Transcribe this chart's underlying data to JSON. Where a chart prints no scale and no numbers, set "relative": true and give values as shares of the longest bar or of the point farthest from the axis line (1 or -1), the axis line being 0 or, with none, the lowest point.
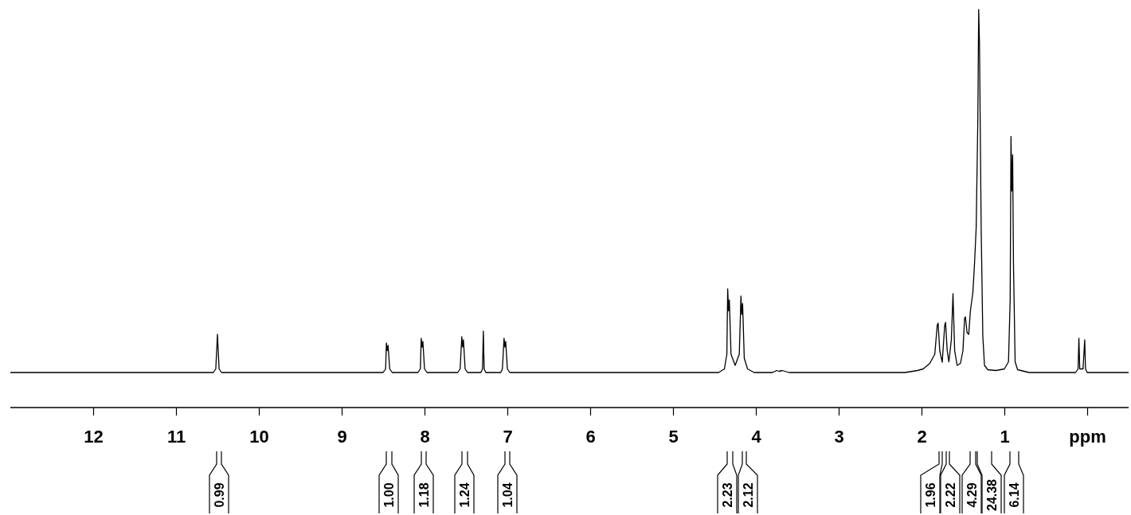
{
  "chart_data": {
    "type": "line",
    "relative": true,
    "xlim": [
      13.0,
      -0.5
    ],
    "xticks": [
      12,
      11,
      10,
      9,
      8,
      7,
      6,
      5,
      4,
      3,
      2,
      1,
      {
        "value": 0,
        "label": "ppm"
      }
    ],
    "series": [
      {
        "color": "#000000",
        "x": [
          13.0,
          10.55,
          10.52,
          10.5,
          10.48,
          10.45,
          8.5,
          8.47,
          8.46,
          8.45,
          8.44,
          8.42,
          8.39,
          8.08,
          8.05,
          8.04,
          8.03,
          8.02,
          8.0,
          7.97,
          7.6,
          7.57,
          7.55,
          7.54,
          7.53,
          7.51,
          7.48,
          7.32,
          7.3,
          7.29,
          7.28,
          7.26,
          7.08,
          7.06,
          7.04,
          7.03,
          7.02,
          7.0,
          6.97,
          4.45,
          4.38,
          4.35,
          4.34,
          4.33,
          4.32,
          4.3,
          4.25,
          4.2,
          4.18,
          4.17,
          4.16,
          4.14,
          4.1,
          4.02,
          3.8,
          3.75,
          3.72,
          3.68,
          3.6,
          2.2,
          2.05,
          1.98,
          1.9,
          1.84,
          1.81,
          1.8,
          1.78,
          1.75,
          1.72,
          1.71,
          1.69,
          1.67,
          1.64,
          1.62,
          1.6,
          1.57,
          1.53,
          1.5,
          1.48,
          1.47,
          1.45,
          1.43,
          1.41,
          1.38,
          1.36,
          1.34,
          1.32,
          1.31,
          1.3,
          1.28,
          1.26,
          1.24,
          1.2,
          1.1,
          1.0,
          0.95,
          0.93,
          0.92,
          0.91,
          0.9,
          0.89,
          0.87,
          0.84,
          0.7,
          0.14,
          0.11,
          0.1,
          0.09,
          0.05,
          0.03,
          0.02,
          0.0,
          -0.5
        ],
        "values": [
          0.088,
          0.088,
          0.097,
          0.184,
          0.097,
          0.088,
          0.088,
          0.097,
          0.162,
          0.143,
          0.156,
          0.097,
          0.088,
          0.088,
          0.097,
          0.174,
          0.152,
          0.166,
          0.097,
          0.088,
          0.088,
          0.097,
          0.178,
          0.152,
          0.17,
          0.097,
          0.088,
          0.088,
          0.097,
          0.192,
          0.097,
          0.088,
          0.088,
          0.097,
          0.174,
          0.152,
          0.166,
          0.097,
          0.088,
          0.088,
          0.097,
          0.134,
          0.298,
          0.243,
          0.27,
          0.134,
          0.106,
          0.134,
          0.28,
          0.234,
          0.261,
          0.124,
          0.097,
          0.088,
          0.088,
          0.093,
          0.091,
          0.093,
          0.088,
          0.088,
          0.093,
          0.097,
          0.111,
          0.134,
          0.207,
          0.212,
          0.143,
          0.114,
          0.207,
          0.214,
          0.143,
          0.115,
          0.17,
          0.286,
          0.143,
          0.106,
          0.111,
          0.143,
          0.225,
          0.228,
          0.188,
          0.184,
          0.243,
          0.289,
          0.362,
          0.453,
          0.726,
          1.0,
          0.909,
          0.453,
          0.179,
          0.106,
          0.095,
          0.093,
          0.097,
          0.115,
          0.27,
          0.681,
          0.544,
          0.635,
          0.362,
          0.115,
          0.095,
          0.088,
          0.088,
          0.097,
          0.174,
          0.097,
          0.097,
          0.17,
          0.097,
          0.088,
          0.088
        ]
      }
    ],
    "annotations": [
      "0.99",
      "1.00",
      "1.18",
      "1.24",
      "1.04",
      "2.23",
      "2.12",
      "1.96",
      "2.22",
      "4.29",
      "24.38",
      "6.14"
    ]
  }
}
